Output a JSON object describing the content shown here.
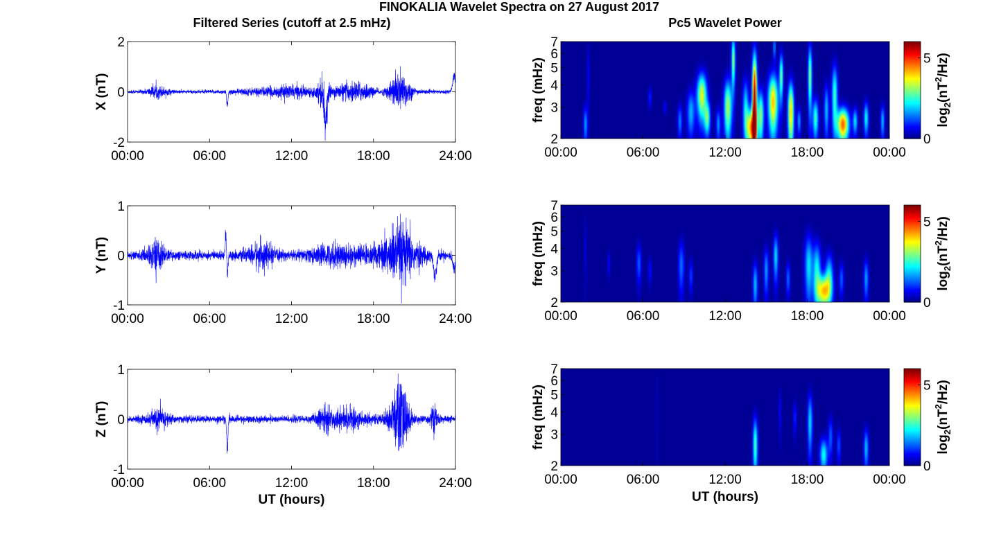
{
  "title": "FINOKALIA Wavelet Spectra on 27 August 2017",
  "left_column_title": "Filtered Series (cutoff at 2.5 mHz)",
  "right_column_title": "Pc5 Wavelet Power",
  "x_axis_label": "UT (hours)",
  "colors": {
    "series": "#0000ff",
    "background": "#00008f",
    "frame": "#000000"
  },
  "chart_data": [
    {
      "type": "line",
      "panel": "X",
      "ylabel": "X (nT)",
      "ylim": [
        -2,
        2
      ],
      "yticks": [
        "2",
        "0",
        "-2"
      ],
      "xlim_hours": [
        0,
        24
      ],
      "xticks": [
        "00:00",
        "06:00",
        "12:00",
        "18:00",
        "24:00"
      ],
      "baseline_amplitude_nT": 0.07,
      "bursts": [
        {
          "t": 2.2,
          "amp": 0.35,
          "width": 0.5
        },
        {
          "t": 7.3,
          "amp": -0.75,
          "width": 0.05
        },
        {
          "t": 10.0,
          "amp": 0.2,
          "width": 1.5
        },
        {
          "t": 12.3,
          "amp": 0.3,
          "width": 1.0
        },
        {
          "t": 14.3,
          "amp": 1.0,
          "width": 0.3
        },
        {
          "t": 14.5,
          "amp": -1.4,
          "width": 0.1
        },
        {
          "t": 16.0,
          "amp": 0.45,
          "width": 0.8
        },
        {
          "t": 17.2,
          "amp": 0.4,
          "width": 0.6
        },
        {
          "t": 19.8,
          "amp": 0.95,
          "width": 0.5
        },
        {
          "t": 20.2,
          "amp": -0.5,
          "width": 0.5
        },
        {
          "t": 23.9,
          "amp": 0.8,
          "width": 0.1
        }
      ]
    },
    {
      "type": "line",
      "panel": "Y",
      "ylabel": "Y (nT)",
      "ylim": [
        -1,
        1
      ],
      "yticks": [
        "1",
        "0",
        "-1"
      ],
      "xlim_hours": [
        0,
        24
      ],
      "xticks": [
        "00:00",
        "06:00",
        "12:00",
        "18:00",
        "24:00"
      ],
      "baseline_amplitude_nT": 0.09,
      "bursts": [
        {
          "t": 2.1,
          "amp": 0.5,
          "width": 0.4
        },
        {
          "t": 7.2,
          "amp": 0.6,
          "width": 0.05
        },
        {
          "t": 7.3,
          "amp": -0.5,
          "width": 0.05
        },
        {
          "t": 9.8,
          "amp": 0.4,
          "width": 0.6
        },
        {
          "t": 15.5,
          "amp": 0.3,
          "width": 1.5
        },
        {
          "t": 19.8,
          "amp": 0.55,
          "width": 1.2
        },
        {
          "t": 20.0,
          "amp": -0.5,
          "width": 0.6
        },
        {
          "t": 22.5,
          "amp": -0.55,
          "width": 0.1
        },
        {
          "t": 23.9,
          "amp": -0.35,
          "width": 0.1
        }
      ]
    },
    {
      "type": "line",
      "panel": "Z",
      "ylabel": "Z (nT)",
      "ylim": [
        -1,
        1
      ],
      "yticks": [
        "1",
        "0",
        "-1"
      ],
      "xlim_hours": [
        0,
        24
      ],
      "xticks": [
        "00:00",
        "06:00",
        "12:00",
        "18:00",
        "24:00"
      ],
      "xlabel": "UT (hours)",
      "baseline_amplitude_nT": 0.07,
      "bursts": [
        {
          "t": 2.3,
          "amp": 0.3,
          "width": 0.5
        },
        {
          "t": 7.3,
          "amp": -0.7,
          "width": 0.05
        },
        {
          "t": 14.4,
          "amp": 0.3,
          "width": 0.4
        },
        {
          "t": 16.2,
          "amp": 0.3,
          "width": 1.0
        },
        {
          "t": 19.8,
          "amp": 0.7,
          "width": 0.5
        },
        {
          "t": 20.0,
          "amp": -0.75,
          "width": 0.4
        },
        {
          "t": 22.4,
          "amp": -0.4,
          "width": 0.2
        }
      ]
    },
    {
      "type": "heatmap",
      "panel": "X wavelet",
      "ylabel": "freq (mHz)",
      "yscale": "log",
      "ylim": [
        2,
        7
      ],
      "yticks": [
        "2",
        "3",
        "4",
        "5",
        "6",
        "7"
      ],
      "xticks": [
        "00:00",
        "06:00",
        "12:00",
        "18:00",
        "00:00"
      ],
      "colorbar": {
        "label": "log2(nT2/Hz)",
        "range": [
          0,
          6
        ],
        "ticks": [
          "5",
          "0"
        ]
      },
      "blobs": [
        {
          "t": 1.8,
          "f": 2.4,
          "p": 1.6,
          "dt": 0.1,
          "df": 0.28
        },
        {
          "t": 2.0,
          "f": 4.5,
          "p": 0.9,
          "dt": 0.05,
          "df": 0.5
        },
        {
          "t": 6.5,
          "f": 3.4,
          "p": 0.9,
          "dt": 0.08,
          "df": 0.15
        },
        {
          "t": 7.6,
          "f": 3.0,
          "p": 0.7,
          "dt": 0.08,
          "df": 0.1
        },
        {
          "t": 8.7,
          "f": 2.5,
          "p": 1.4,
          "dt": 0.12,
          "df": 0.25
        },
        {
          "t": 9.5,
          "f": 2.8,
          "p": 1.7,
          "dt": 0.2,
          "df": 0.35
        },
        {
          "t": 10.3,
          "f": 3.5,
          "p": 3.5,
          "dt": 0.25,
          "df": 0.35
        },
        {
          "t": 10.7,
          "f": 2.6,
          "p": 2.5,
          "dt": 0.15,
          "df": 0.25
        },
        {
          "t": 11.5,
          "f": 2.4,
          "p": 1.5,
          "dt": 0.12,
          "df": 0.25
        },
        {
          "t": 12.2,
          "f": 3.0,
          "p": 3.2,
          "dt": 0.2,
          "df": 0.45
        },
        {
          "t": 12.6,
          "f": 5.5,
          "p": 3.0,
          "dt": 0.1,
          "df": 0.4
        },
        {
          "t": 13.5,
          "f": 3.0,
          "p": 2.0,
          "dt": 0.15,
          "df": 0.45
        },
        {
          "t": 13.9,
          "f": 2.3,
          "p": 4.0,
          "dt": 0.25,
          "df": 0.3
        },
        {
          "t": 14.15,
          "f": 3.2,
          "p": 6.0,
          "dt": 0.12,
          "df": 0.9
        },
        {
          "t": 14.6,
          "f": 2.7,
          "p": 3.0,
          "dt": 0.15,
          "df": 0.4
        },
        {
          "t": 15.5,
          "f": 3.2,
          "p": 4.0,
          "dt": 0.25,
          "df": 0.45
        },
        {
          "t": 15.6,
          "f": 6.5,
          "p": 2.0,
          "dt": 0.05,
          "df": 0.2
        },
        {
          "t": 16.1,
          "f": 4.5,
          "p": 2.8,
          "dt": 0.1,
          "df": 0.35
        },
        {
          "t": 16.8,
          "f": 2.8,
          "p": 4.0,
          "dt": 0.15,
          "df": 0.5
        },
        {
          "t": 17.4,
          "f": 2.5,
          "p": 1.6,
          "dt": 0.1,
          "df": 0.2
        },
        {
          "t": 18.2,
          "f": 4.5,
          "p": 3.0,
          "dt": 0.1,
          "df": 0.5
        },
        {
          "t": 18.6,
          "f": 2.6,
          "p": 2.5,
          "dt": 0.15,
          "df": 0.3
        },
        {
          "t": 19.4,
          "f": 2.9,
          "p": 1.8,
          "dt": 0.12,
          "df": 0.4
        },
        {
          "t": 20.0,
          "f": 3.5,
          "p": 2.5,
          "dt": 0.15,
          "df": 0.5
        },
        {
          "t": 20.6,
          "f": 2.4,
          "p": 4.6,
          "dt": 0.3,
          "df": 0.25
        },
        {
          "t": 21.5,
          "f": 2.5,
          "p": 2.0,
          "dt": 0.12,
          "df": 0.2
        },
        {
          "t": 22.3,
          "f": 2.6,
          "p": 2.2,
          "dt": 0.12,
          "df": 0.25
        },
        {
          "t": 23.5,
          "f": 2.5,
          "p": 1.8,
          "dt": 0.1,
          "df": 0.25
        }
      ]
    },
    {
      "type": "heatmap",
      "panel": "Y wavelet",
      "ylabel": "freq (mHz)",
      "yscale": "log",
      "ylim": [
        2,
        7
      ],
      "yticks": [
        "2",
        "3",
        "4",
        "5",
        "6",
        "7"
      ],
      "xticks": [
        "00:00",
        "06:00",
        "12:00",
        "18:00",
        "00:00"
      ],
      "colorbar": {
        "label": "log2(nT2/Hz)",
        "range": [
          0,
          6
        ],
        "ticks": [
          "5",
          "0"
        ]
      },
      "blobs": [
        {
          "t": 1.8,
          "f": 4.0,
          "p": 0.6,
          "dt": 0.05,
          "df": 0.5
        },
        {
          "t": 3.5,
          "f": 3.3,
          "p": 0.6,
          "dt": 0.08,
          "df": 0.2
        },
        {
          "t": 5.7,
          "f": 3.3,
          "p": 1.2,
          "dt": 0.12,
          "df": 0.3
        },
        {
          "t": 6.5,
          "f": 3.0,
          "p": 0.8,
          "dt": 0.08,
          "df": 0.2
        },
        {
          "t": 8.8,
          "f": 3.2,
          "p": 1.3,
          "dt": 0.15,
          "df": 0.4
        },
        {
          "t": 9.5,
          "f": 2.8,
          "p": 1.0,
          "dt": 0.1,
          "df": 0.25
        },
        {
          "t": 14.2,
          "f": 2.5,
          "p": 1.8,
          "dt": 0.12,
          "df": 0.35
        },
        {
          "t": 15.0,
          "f": 3.0,
          "p": 1.6,
          "dt": 0.12,
          "df": 0.35
        },
        {
          "t": 15.7,
          "f": 3.6,
          "p": 2.0,
          "dt": 0.12,
          "df": 0.35
        },
        {
          "t": 16.6,
          "f": 2.7,
          "p": 1.3,
          "dt": 0.1,
          "df": 0.25
        },
        {
          "t": 18.1,
          "f": 3.2,
          "p": 2.0,
          "dt": 0.2,
          "df": 0.5
        },
        {
          "t": 18.7,
          "f": 3.0,
          "p": 2.2,
          "dt": 0.2,
          "df": 0.45
        },
        {
          "t": 19.2,
          "f": 2.3,
          "p": 3.8,
          "dt": 0.35,
          "df": 0.25
        },
        {
          "t": 19.6,
          "f": 2.8,
          "p": 2.0,
          "dt": 0.2,
          "df": 0.35
        },
        {
          "t": 20.5,
          "f": 2.7,
          "p": 1.2,
          "dt": 0.12,
          "df": 0.25
        },
        {
          "t": 22.3,
          "f": 2.7,
          "p": 1.6,
          "dt": 0.12,
          "df": 0.3
        }
      ]
    },
    {
      "type": "heatmap",
      "panel": "Z wavelet",
      "ylabel": "freq (mHz)",
      "yscale": "log",
      "ylim": [
        2,
        7
      ],
      "yticks": [
        "2",
        "3",
        "4",
        "5",
        "6",
        "7"
      ],
      "xticks": [
        "00:00",
        "06:00",
        "12:00",
        "18:00",
        "00:00"
      ],
      "xlabel": "UT (hours)",
      "colorbar": {
        "label": "log2(nT2/Hz)",
        "range": [
          0,
          6
        ],
        "ticks": [
          "5",
          "0"
        ]
      },
      "blobs": [
        {
          "t": 7.0,
          "f": 4.0,
          "p": 0.4,
          "dt": 0.04,
          "df": 0.8
        },
        {
          "t": 14.2,
          "f": 2.6,
          "p": 2.6,
          "dt": 0.12,
          "df": 0.45
        },
        {
          "t": 16.0,
          "f": 4.0,
          "p": 0.7,
          "dt": 0.06,
          "df": 0.35
        },
        {
          "t": 17.1,
          "f": 3.7,
          "p": 0.9,
          "dt": 0.08,
          "df": 0.25
        },
        {
          "t": 18.2,
          "f": 3.5,
          "p": 2.0,
          "dt": 0.12,
          "df": 0.45
        },
        {
          "t": 19.2,
          "f": 2.3,
          "p": 2.2,
          "dt": 0.2,
          "df": 0.25
        },
        {
          "t": 19.7,
          "f": 2.9,
          "p": 1.2,
          "dt": 0.12,
          "df": 0.3
        },
        {
          "t": 20.3,
          "f": 2.6,
          "p": 1.1,
          "dt": 0.1,
          "df": 0.25
        },
        {
          "t": 22.3,
          "f": 2.5,
          "p": 1.8,
          "dt": 0.12,
          "df": 0.3
        }
      ]
    }
  ]
}
